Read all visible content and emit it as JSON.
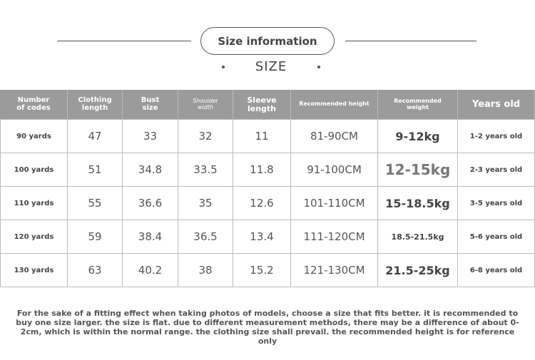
{
  "header": {
    "title": "Size information",
    "subtitle": "SIZE"
  },
  "table": {
    "headers": [
      "Number\nof codes",
      "Clothing\nlength",
      "Bust\nsize",
      "Shoulder\nwidth",
      "Sleeve\nlength",
      "Recommended height",
      "Recommended\nweight",
      "Years old"
    ],
    "rows": [
      [
        "90 yards",
        "47",
        "33",
        "32",
        "11",
        "81-90CM",
        "9-12kg",
        "1-2 years old"
      ],
      [
        "100 yards",
        "51",
        "34.8",
        "33.5",
        "11.8",
        "91-100CM",
        "12-15kg",
        "2-3 years old"
      ],
      [
        "110 yards",
        "55",
        "36.6",
        "35",
        "12.6",
        "101-110CM",
        "15-18.5kg",
        "3-5 years old"
      ],
      [
        "120 yards",
        "59",
        "38.4",
        "36.5",
        "13.4",
        "111-120CM",
        "18.5-21.5kg",
        "5-6 years old"
      ],
      [
        "130 yards",
        "63",
        "40.2",
        "38",
        "15.2",
        "121-130CM",
        "21.5-25kg",
        "6-8 years old"
      ]
    ]
  },
  "note": "For the sake of a fitting effect when taking photos of models, choose a size that fits better. it is recommended to buy one size larger. the size is flat. due to different measurement methods, there may be a difference of about 0-2cm, which is within the normal range. the clothing size shall prevail. the recommended height is for reference only"
}
